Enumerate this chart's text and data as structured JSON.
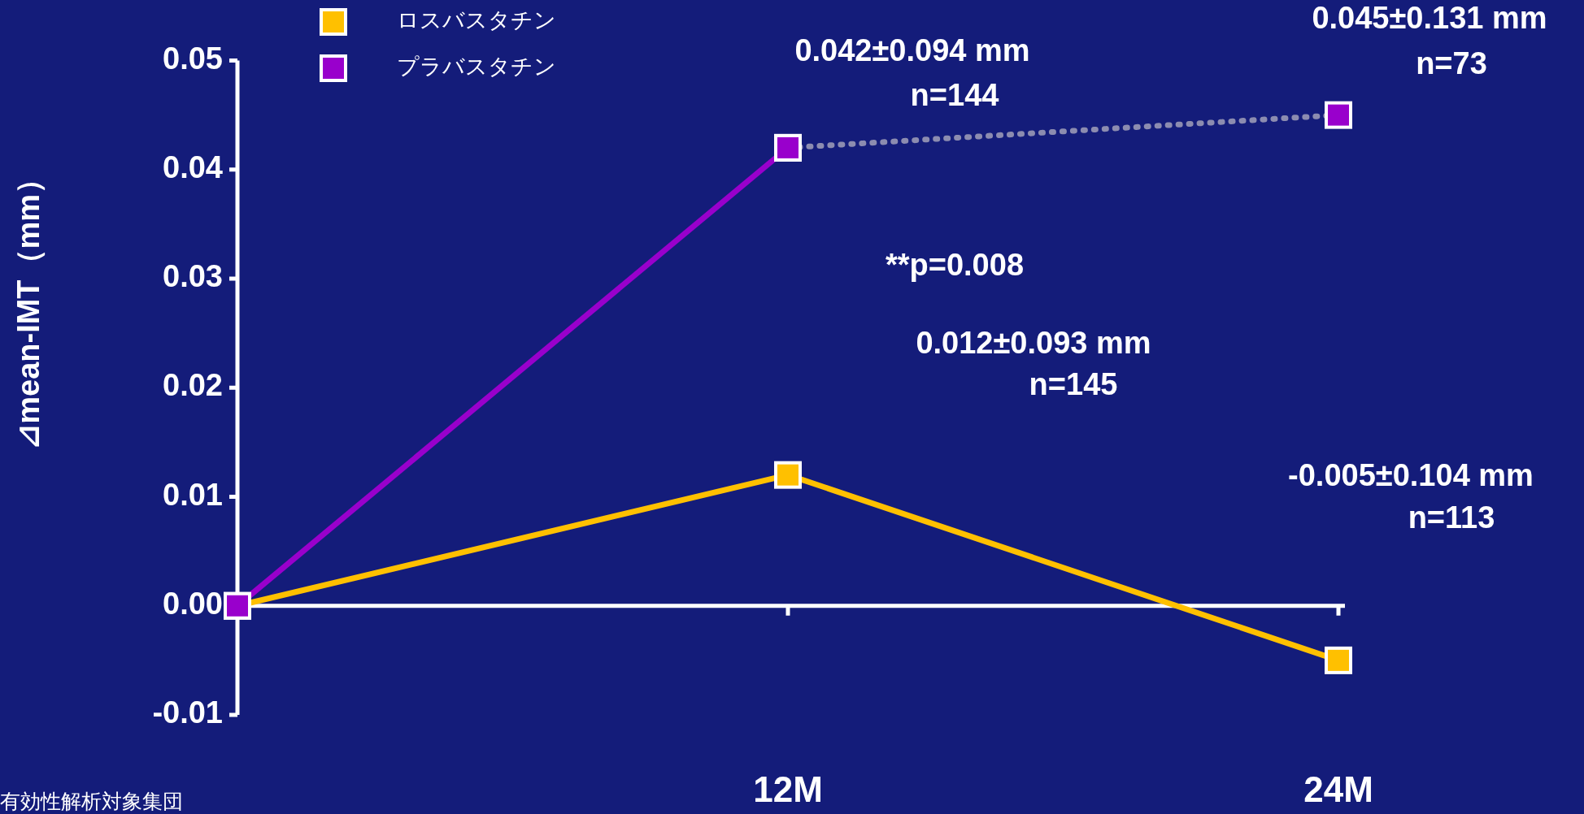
{
  "chart_data": {
    "type": "line",
    "ylabel": "⊿mean-IMT（mm）",
    "categories": [
      null,
      "12M",
      "24M"
    ],
    "ylim": [
      -0.01,
      0.05
    ],
    "yticks": [
      {
        "value": 0.05,
        "label": "0.05"
      },
      {
        "value": 0.04,
        "label": "0.04"
      },
      {
        "value": 0.03,
        "label": "0.03"
      },
      {
        "value": 0.02,
        "label": "0.02"
      },
      {
        "value": 0.01,
        "label": "0.01"
      },
      {
        "value": 0,
        "label": "0.00"
      },
      {
        "value": -0.01,
        "label": "-0.01"
      }
    ],
    "series": [
      {
        "name": "ロスバスタチン",
        "color": "#ffc000",
        "values": [
          0,
          0.012,
          -0.005
        ]
      },
      {
        "name": "プラバスタチン",
        "color": "#9900cc",
        "values": [
          0,
          0.042,
          null
        ]
      },
      {
        "color": "#8c8cb0",
        "line_style": "dotted",
        "colors": [
          null,
          "#9900cc",
          "#9900cc"
        ],
        "values": [
          null,
          0.042,
          0.045
        ]
      }
    ],
    "marker": "square",
    "legend": "top left",
    "annotations": [
      "0.042±0.094 mm",
      "n=144",
      "0.045±0.131 mm",
      "n=73",
      "**p=0.008",
      "0.012±0.093 mm",
      "n=145",
      "-0.005±0.104 mm",
      "n=113",
      "有効性解析対象集団"
    ]
  }
}
